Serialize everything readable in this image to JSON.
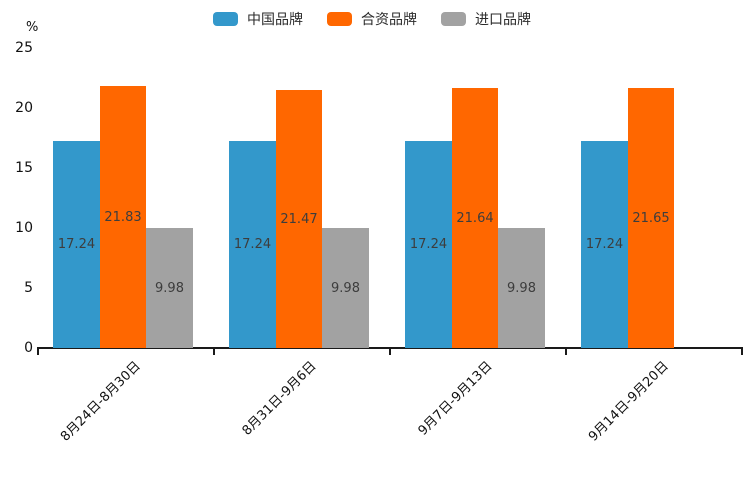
{
  "chart_data": {
    "type": "bar",
    "title": "",
    "ylabel": "%",
    "xlabel": "",
    "categories": [
      "8月24日-8月30日",
      "8月31日-9月6日",
      "9月7日-9月13日",
      "9月14日-9月20日"
    ],
    "series": [
      {
        "name": "中国品牌",
        "color": "#3398CB",
        "values": [
          17.24,
          17.24,
          17.24,
          17.24
        ]
      },
      {
        "name": "合资品牌",
        "color": "#FF6700",
        "values": [
          21.83,
          21.47,
          21.64,
          21.65
        ]
      },
      {
        "name": "进口品牌",
        "color": "#A2A2A2",
        "values": [
          9.98,
          9.98,
          9.98,
          null
        ]
      }
    ],
    "value_labels": [
      "17.24",
      "21.83",
      "9.98",
      "17.24",
      "21.47",
      "9.98",
      "17.24",
      "21.64",
      "9.98",
      "17.24",
      "21.65"
    ],
    "ylim": [
      0,
      25
    ],
    "yticks": [
      0,
      5,
      10,
      15,
      20,
      25
    ],
    "legend_position": "top-center",
    "grid": false,
    "value_label_color": "#3D3D3D",
    "axis_color": "#1A1A1A",
    "background": "#FFFFFF"
  }
}
